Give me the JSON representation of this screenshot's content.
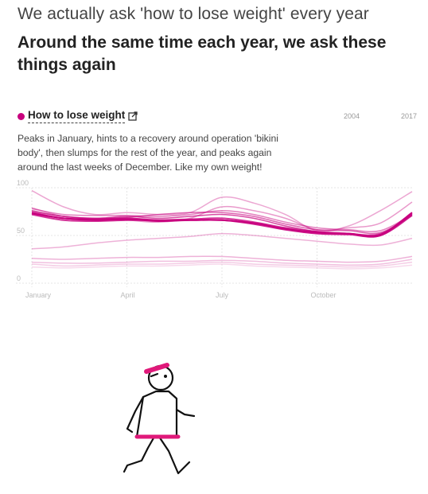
{
  "header": {
    "title": "We actually ask 'how to lose weight' every year",
    "headline": "Around the same time each year, we ask these things again"
  },
  "topic": {
    "label": "How to lose weight",
    "description": "Peaks in January, hints to a recovery around operation 'bikini body', then slumps for the rest of the year, and peaks again around the last weeks of December. Like my own weight!",
    "icon": "external-link-icon"
  },
  "legend": {
    "start": "2004",
    "end": "2017"
  },
  "colors": {
    "accent": "#c8007e",
    "grid": "#e4e4e4",
    "axis_text": "#bbbbbb"
  },
  "chart_data": {
    "type": "line",
    "x": [
      0,
      1,
      2,
      3,
      4,
      5,
      6,
      7,
      8,
      9,
      10,
      11,
      12
    ],
    "xticks": [
      {
        "x": 0,
        "label": "January"
      },
      {
        "x": 3,
        "label": "April"
      },
      {
        "x": 6,
        "label": "July"
      },
      {
        "x": 9,
        "label": "October"
      }
    ],
    "yticks": [
      0,
      50,
      100
    ],
    "ylim": [
      0,
      100
    ],
    "xlim": [
      0,
      12
    ],
    "series": [
      {
        "values": [
          17,
          16,
          17,
          18,
          18,
          19,
          20,
          18,
          17,
          16,
          15,
          16,
          19
        ],
        "opacity": 0.15
      },
      {
        "values": [
          20,
          18,
          19,
          20,
          20,
          21,
          22,
          20,
          19,
          18,
          17,
          18,
          22
        ],
        "opacity": 0.2
      },
      {
        "values": [
          22,
          21,
          21,
          22,
          23,
          23,
          24,
          23,
          21,
          20,
          19,
          20,
          25
        ],
        "opacity": 0.25
      },
      {
        "values": [
          26,
          25,
          26,
          27,
          27,
          28,
          28,
          26,
          24,
          23,
          22,
          23,
          28
        ],
        "opacity": 0.3
      },
      {
        "values": [
          36,
          38,
          42,
          45,
          47,
          49,
          52,
          50,
          47,
          44,
          41,
          40,
          47
        ],
        "opacity": 0.3
      },
      {
        "values": [
          97,
          80,
          72,
          74,
          72,
          74,
          90,
          84,
          72,
          55,
          60,
          76,
          96
        ],
        "opacity": 0.35
      },
      {
        "values": [
          79,
          70,
          67,
          66,
          64,
          68,
          80,
          76,
          68,
          56,
          58,
          63,
          85
        ],
        "opacity": 0.4
      },
      {
        "values": [
          78,
          72,
          71,
          71,
          70,
          72,
          76,
          72,
          64,
          58,
          56,
          55,
          72
        ],
        "opacity": 0.5
      },
      {
        "values": [
          75,
          70,
          68,
          69,
          72,
          74,
          74,
          70,
          62,
          56,
          55,
          53,
          72
        ],
        "opacity": 0.6
      },
      {
        "values": [
          76,
          70,
          68,
          70,
          68,
          70,
          72,
          68,
          60,
          54,
          52,
          52,
          71
        ],
        "opacity": 0.7
      },
      {
        "values": [
          72,
          66,
          65,
          66,
          66,
          67,
          68,
          64,
          58,
          54,
          52,
          50,
          71
        ],
        "opacity": 0.8
      },
      {
        "values": [
          74,
          68,
          67,
          68,
          66,
          66,
          66,
          62,
          56,
          52,
          51,
          50,
          73
        ],
        "opacity": 0.9
      },
      {
        "values": [
          73,
          68,
          66,
          67,
          65,
          66,
          66,
          63,
          57,
          53,
          52,
          51,
          74
        ],
        "opacity": 1.0
      }
    ]
  }
}
